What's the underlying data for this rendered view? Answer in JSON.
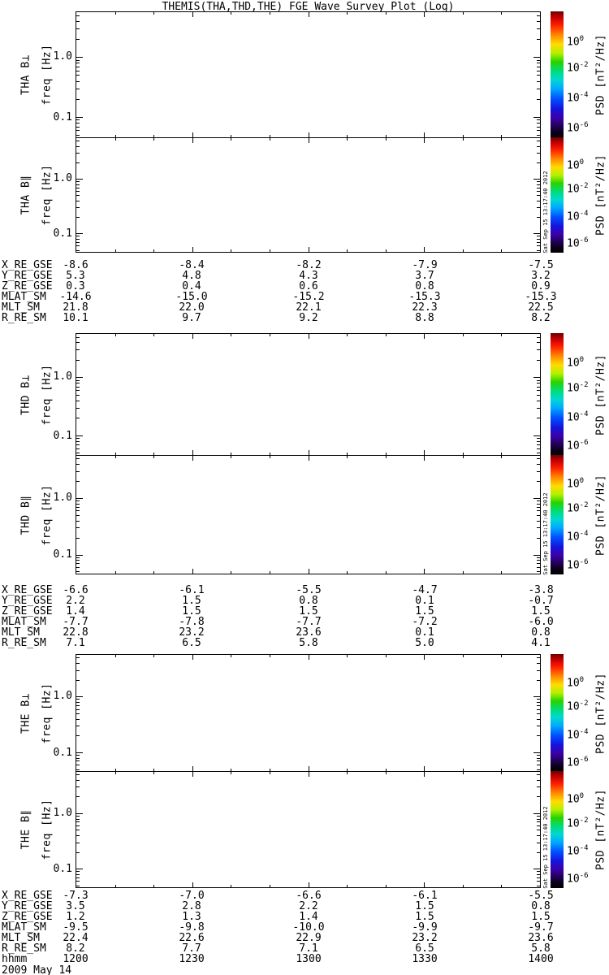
{
  "title": "THEMIS(THA,THD,THE) FGE Wave Survey Plot (Log)",
  "axis": {
    "freq_label": "freq [Hz]",
    "freq_ticks": [
      "1.0",
      "0.1"
    ],
    "time_label": "hhmm",
    "time_ticks": [
      "1200",
      "1230",
      "1300",
      "1330",
      "1400"
    ],
    "date_label": "2009 May 14"
  },
  "colorbar": {
    "label": "PSD [nT²/Hz]",
    "ticks": [
      {
        "base": "10",
        "exp": "0"
      },
      {
        "base": "10",
        "exp": "-2"
      },
      {
        "base": "10",
        "exp": "-4"
      },
      {
        "base": "10",
        "exp": "-6"
      }
    ],
    "colors_top_to_bottom": [
      "#6e0000",
      "#c80000",
      "#ff2000",
      "#ff8c00",
      "#ffdc00",
      "#b4f000",
      "#28d200",
      "#00dc78",
      "#00d8d2",
      "#00a8ff",
      "#0050ff",
      "#1414dc",
      "#3c00aa",
      "#230060",
      "#0c001c",
      "#000000"
    ]
  },
  "groups": [
    {
      "probe": "THA",
      "panels": [
        {
          "label": "THA B⊥"
        },
        {
          "label": "THA B∥"
        }
      ],
      "timestamp": "Sat Sep 15 13:17:40 2012"
    },
    {
      "probe": "THD",
      "panels": [
        {
          "label": "THD B⊥"
        },
        {
          "label": "THD B∥"
        }
      ],
      "timestamp": "Sat Sep 15 13:17:40 2012"
    },
    {
      "probe": "THE",
      "panels": [
        {
          "label": "THE B⊥"
        },
        {
          "label": "THE B∥"
        }
      ],
      "timestamp": "Sat Sep 15 13:17:40 2012"
    }
  ],
  "ephemeris": {
    "blocks": [
      {
        "rows": [
          {
            "label": "X_RE_GSE",
            "values": [
              "-8.6",
              "-8.4",
              "-8.2",
              "-7.9",
              "-7.5"
            ]
          },
          {
            "label": "Y_RE_GSE",
            "values": [
              "5.3",
              "4.8",
              "4.3",
              "3.7",
              "3.2"
            ]
          },
          {
            "label": "Z_RE_GSE",
            "values": [
              "0.3",
              "0.4",
              "0.6",
              "0.8",
              "0.9"
            ]
          },
          {
            "label": "MLAT_SM",
            "values": [
              "-14.6",
              "-15.0",
              "-15.2",
              "-15.3",
              "-15.3"
            ]
          },
          {
            "label": "MLT_SM",
            "values": [
              "21.8",
              "22.0",
              "22.1",
              "22.3",
              "22.5"
            ]
          },
          {
            "label": "R_RE_SM",
            "values": [
              "10.1",
              "9.7",
              "9.2",
              "8.8",
              "8.2"
            ]
          }
        ]
      },
      {
        "rows": [
          {
            "label": "X_RE_GSE",
            "values": [
              "-6.6",
              "-6.1",
              "-5.5",
              "-4.7",
              "-3.8"
            ]
          },
          {
            "label": "Y_RE_GSE",
            "values": [
              "2.2",
              "1.5",
              "0.8",
              "0.1",
              "-0.7"
            ]
          },
          {
            "label": "Z_RE_GSE",
            "values": [
              "1.4",
              "1.5",
              "1.5",
              "1.5",
              "1.5"
            ]
          },
          {
            "label": "MLAT_SM",
            "values": [
              "-7.7",
              "-7.8",
              "-7.7",
              "-7.2",
              "-6.0"
            ]
          },
          {
            "label": "MLT_SM",
            "values": [
              "22.8",
              "23.2",
              "23.6",
              "0.1",
              "0.8"
            ]
          },
          {
            "label": "R_RE_SM",
            "values": [
              "7.1",
              "6.5",
              "5.8",
              "5.0",
              "4.1"
            ]
          }
        ]
      },
      {
        "rows": [
          {
            "label": "X_RE_GSE",
            "values": [
              "-7.3",
              "-7.0",
              "-6.6",
              "-6.1",
              "-5.5"
            ]
          },
          {
            "label": "Y_RE_GSE",
            "values": [
              "3.5",
              "2.8",
              "2.2",
              "1.5",
              "0.8"
            ]
          },
          {
            "label": "Z_RE_GSE",
            "values": [
              "1.2",
              "1.3",
              "1.4",
              "1.5",
              "1.5"
            ]
          },
          {
            "label": "MLAT_SM",
            "values": [
              "-9.5",
              "-9.8",
              "-10.0",
              "-9.9",
              "-9.7"
            ]
          },
          {
            "label": "MLT_SM",
            "values": [
              "22.4",
              "22.6",
              "22.9",
              "23.2",
              "23.6"
            ]
          },
          {
            "label": "R_RE_SM",
            "values": [
              "8.2",
              "7.7",
              "7.1",
              "6.5",
              "5.8"
            ]
          },
          {
            "label": "hhmm",
            "values": [
              "1200",
              "1230",
              "1300",
              "1330",
              "1400"
            ]
          }
        ]
      }
    ]
  },
  "chart_data": {
    "type": "heatmap",
    "title": "THEMIS(THA,THD,THE) FGE Wave Survey Plot (Log)",
    "panels": [
      "THA B⊥",
      "THA B∥",
      "THD B⊥",
      "THD B∥",
      "THE B⊥",
      "THE B∥"
    ],
    "x": {
      "label": "hhmm",
      "ticks": [
        "1200",
        "1230",
        "1300",
        "1330",
        "1400"
      ],
      "date": "2009 May 14"
    },
    "y": {
      "label": "freq [Hz]",
      "scale": "log",
      "labeled_ticks": [
        1.0,
        0.1
      ],
      "approx_range_hz": [
        0.046,
        5.6
      ]
    },
    "z": {
      "label": "PSD [nT²/Hz]",
      "scale": "log",
      "colorbar_ticks": [
        1,
        0.01,
        0.0001,
        1e-06
      ],
      "colormap": "rainbow fading to black at bottom"
    },
    "values": "no spectral data rendered; all six spectrogram panels are blank/white",
    "ephemeris_series": {
      "time_hhmm": [
        1200,
        1230,
        1300,
        1330,
        1400
      ],
      "THA": {
        "X_RE_GSE": [
          -8.6,
          -8.4,
          -8.2,
          -7.9,
          -7.5
        ],
        "Y_RE_GSE": [
          5.3,
          4.8,
          4.3,
          3.7,
          3.2
        ],
        "Z_RE_GSE": [
          0.3,
          0.4,
          0.6,
          0.8,
          0.9
        ],
        "MLAT_SM": [
          -14.6,
          -15.0,
          -15.2,
          -15.3,
          -15.3
        ],
        "MLT_SM": [
          21.8,
          22.0,
          22.1,
          22.3,
          22.5
        ],
        "R_RE_SM": [
          10.1,
          9.7,
          9.2,
          8.8,
          8.2
        ]
      },
      "THD": {
        "X_RE_GSE": [
          -6.6,
          -6.1,
          -5.5,
          -4.7,
          -3.8
        ],
        "Y_RE_GSE": [
          2.2,
          1.5,
          0.8,
          0.1,
          -0.7
        ],
        "Z_RE_GSE": [
          1.4,
          1.5,
          1.5,
          1.5,
          1.5
        ],
        "MLAT_SM": [
          -7.7,
          -7.8,
          -7.7,
          -7.2,
          -6.0
        ],
        "MLT_SM": [
          22.8,
          23.2,
          23.6,
          0.1,
          0.8
        ],
        "R_RE_SM": [
          7.1,
          6.5,
          5.8,
          5.0,
          4.1
        ]
      },
      "THE": {
        "X_RE_GSE": [
          -7.3,
          -7.0,
          -6.6,
          -6.1,
          -5.5
        ],
        "Y_RE_GSE": [
          3.5,
          2.8,
          2.2,
          1.5,
          0.8
        ],
        "Z_RE_GSE": [
          1.2,
          1.3,
          1.4,
          1.5,
          1.5
        ],
        "MLAT_SM": [
          -9.5,
          -9.8,
          -10.0,
          -9.9,
          -9.7
        ],
        "MLT_SM": [
          22.4,
          22.6,
          22.9,
          23.2,
          23.6
        ],
        "R_RE_SM": [
          8.2,
          7.7,
          7.1,
          6.5,
          5.8
        ]
      }
    },
    "layout_hints": {
      "grid": false,
      "legend": "colorbar right of each panel",
      "stacked_panels": 6
    }
  }
}
